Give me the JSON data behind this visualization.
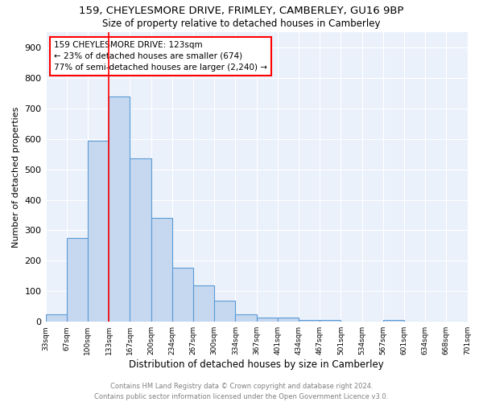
{
  "title_line1": "159, CHEYLESMORE DRIVE, FRIMLEY, CAMBERLEY, GU16 9BP",
  "title_line2": "Size of property relative to detached houses in Camberley",
  "xlabel": "Distribution of detached houses by size in Camberley",
  "ylabel": "Number of detached properties",
  "bar_values": [
    25,
    275,
    595,
    740,
    537,
    342,
    178,
    118,
    68,
    25,
    15,
    13,
    7,
    5,
    0,
    0,
    6,
    0,
    0,
    0
  ],
  "all_labels": [
    "33sqm",
    "67sqm",
    "100sqm",
    "133sqm",
    "167sqm",
    "200sqm",
    "234sqm",
    "267sqm",
    "300sqm",
    "334sqm",
    "367sqm",
    "401sqm",
    "434sqm",
    "467sqm",
    "501sqm",
    "534sqm",
    "567sqm",
    "601sqm",
    "634sqm",
    "668sqm",
    "701sqm"
  ],
  "bar_color": "#c5d8f0",
  "bar_edge_color": "#5b9bd5",
  "vline_x": 2.5,
  "vline_color": "red",
  "annotation_text": "159 CHEYLESMORE DRIVE: 123sqm\n← 23% of detached houses are smaller (674)\n77% of semi-detached houses are larger (2,240) →",
  "annotation_box_color": "white",
  "annotation_box_edge": "red",
  "ylim": [
    0,
    950
  ],
  "yticks": [
    0,
    100,
    200,
    300,
    400,
    500,
    600,
    700,
    800,
    900
  ],
  "bg_color": "#eaf1fb",
  "grid_color": "white",
  "footer_line1": "Contains HM Land Registry data © Crown copyright and database right 2024.",
  "footer_line2": "Contains public sector information licensed under the Open Government Licence v3.0."
}
